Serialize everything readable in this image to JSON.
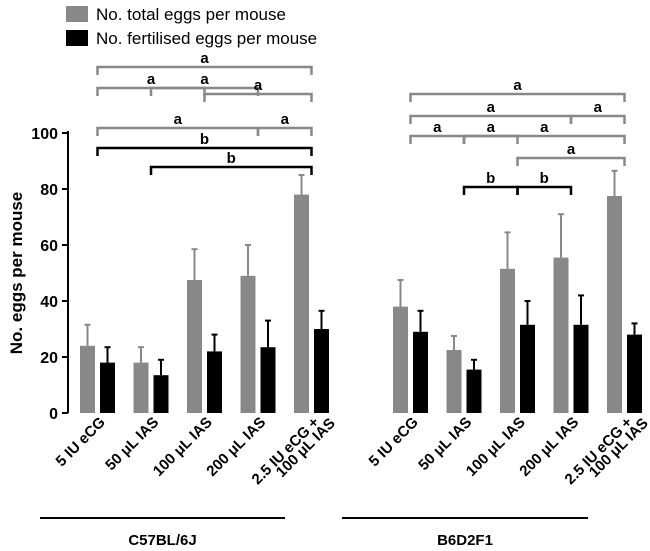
{
  "chart_data": {
    "type": "bar",
    "ylabel": "No. eggs per mouse",
    "ylim": [
      0,
      100
    ],
    "yticks": [
      "0",
      "20",
      "40",
      "60",
      "80",
      "100"
    ],
    "legend": {
      "position": "top-left",
      "entries": [
        {
          "label": "No. total eggs per mouse",
          "color": "#888888"
        },
        {
          "label": "No. fertilised eggs per mouse",
          "color": "#000000"
        }
      ]
    },
    "colors": {
      "total": "#888888",
      "fertilised": "#000000",
      "significance_a": "#888888",
      "significance_b": "#000000"
    },
    "groups": [
      {
        "strain": "C57BL/6J",
        "categories": [
          {
            "line1": "5 IU eCG",
            "line2": ""
          },
          {
            "line1": "50 μL IAS",
            "line2": ""
          },
          {
            "line1": "100 μL IAS",
            "line2": ""
          },
          {
            "line1": "200 μL IAS",
            "line2": ""
          },
          {
            "line1": "2.5 IU eCG +",
            "line2": "100 μL IAS"
          }
        ],
        "series": [
          {
            "name": "No. total eggs per mouse",
            "values": [
              24,
              18,
              47.5,
              49,
              78
            ],
            "errors": [
              7.5,
              5.5,
              11,
              11,
              7
            ]
          },
          {
            "name": "No. fertilised eggs per mouse",
            "values": [
              18,
              13.5,
              22,
              23.5,
              30
            ],
            "errors": [
              5.5,
              5.5,
              6,
              9.5,
              6.5
            ]
          }
        ],
        "significance": [
          {
            "label": "a",
            "from": 0,
            "to": 4
          },
          {
            "label": "a",
            "from": 1,
            "to": 3
          },
          {
            "label": "a",
            "from": 0,
            "to": 2
          },
          {
            "label": "a",
            "from": 2,
            "to": 4
          },
          {
            "label": "a",
            "from": 0,
            "to": 3
          },
          {
            "label": "a",
            "from": 3,
            "to": 4
          },
          {
            "label": "b",
            "from": 0,
            "to": 4
          },
          {
            "label": "b",
            "from": 1,
            "to": 4
          }
        ]
      },
      {
        "strain": "B6D2F1",
        "categories": [
          {
            "line1": "5 IU eCG",
            "line2": ""
          },
          {
            "line1": "50 μL IAS",
            "line2": ""
          },
          {
            "line1": "100 μL IAS",
            "line2": ""
          },
          {
            "line1": "200 μL IAS",
            "line2": ""
          },
          {
            "line1": "2.5 IU eCG +",
            "line2": "100 μL IAS"
          }
        ],
        "series": [
          {
            "name": "No. total eggs per mouse",
            "values": [
              38,
              22.5,
              51.5,
              55.5,
              77.5
            ],
            "errors": [
              9.5,
              5,
              13,
              15.5,
              9
            ]
          },
          {
            "name": "No. fertilised eggs per mouse",
            "values": [
              29,
              15.5,
              31.5,
              31.5,
              28
            ],
            "errors": [
              7.5,
              3.5,
              8.5,
              10.5,
              4
            ]
          }
        ],
        "significance": [
          {
            "label": "a",
            "from": 0,
            "to": 4
          },
          {
            "label": "a",
            "from": 0,
            "to": 3
          },
          {
            "label": "a",
            "from": 3,
            "to": 4
          },
          {
            "label": "a",
            "from": 0,
            "to": 1
          },
          {
            "label": "a",
            "from": 1,
            "to": 4
          },
          {
            "label": "a",
            "from": 1,
            "to": 2
          },
          {
            "label": "a",
            "from": 2,
            "to": 4
          },
          {
            "label": "b",
            "from": 1,
            "to": 2
          },
          {
            "label": "b",
            "from": 2,
            "to": 3
          }
        ]
      }
    ]
  }
}
